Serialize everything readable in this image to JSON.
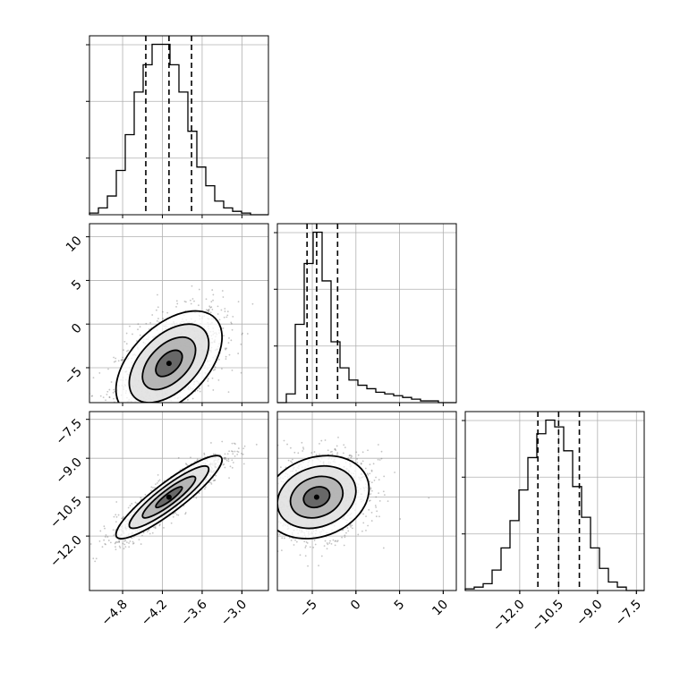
{
  "chart_data": {
    "type": "corner",
    "colors": {
      "line": "#000000",
      "grid": "#b0b0b0",
      "scatter": "#555555",
      "background": "#ffffff"
    },
    "grid": true,
    "params": [
      {
        "range": [
          -5.3,
          -2.6
        ],
        "ticks": [
          "-4.8",
          "-4.2",
          "-3.6",
          "-3.0"
        ],
        "tick_values": [
          -4.8,
          -4.2,
          -3.6,
          -3.0
        ],
        "quantiles": [
          -4.45,
          -4.1,
          -3.76
        ],
        "hist_counts": [
          1,
          4,
          11,
          26,
          47,
          72,
          88,
          100,
          100,
          88,
          72,
          49,
          28,
          17,
          8,
          4,
          2,
          1,
          0,
          0
        ]
      },
      {
        "range": [
          -9,
          11.5
        ],
        "ticks": [
          "-5",
          "0",
          "5",
          "10"
        ],
        "tick_values": [
          -5,
          0,
          5,
          10
        ],
        "quantiles": [
          -5.6,
          -4.5,
          -2.1
        ],
        "hist_counts": [
          0,
          5,
          45,
          80,
          98,
          70,
          35,
          20,
          13,
          10,
          8,
          6,
          5,
          4,
          3,
          2,
          1,
          1,
          0,
          0
        ]
      },
      {
        "range": [
          -14.1,
          -7.2
        ],
        "ticks": [
          "-12.0",
          "-10.5",
          "-9.0",
          "-7.5"
        ],
        "tick_values": [
          -12.0,
          -10.5,
          -9.0,
          -7.5
        ],
        "quantiles": [
          -11.3,
          -10.5,
          -9.7
        ],
        "hist_counts": [
          1,
          2,
          4,
          12,
          25,
          41,
          59,
          78,
          92,
          100,
          96,
          82,
          61,
          43,
          25,
          13,
          5,
          2,
          0,
          0
        ]
      }
    ],
    "scatter_panels": [
      {
        "x_param": 0,
        "y_param": 1,
        "mean": [
          -4.1,
          -4.5
        ],
        "sd": [
          0.4,
          3.0
        ],
        "corr": 0.5
      },
      {
        "x_param": 0,
        "y_param": 2,
        "mean": [
          -4.1,
          -10.5
        ],
        "sd": [
          0.4,
          0.8
        ],
        "corr": 0.9
      },
      {
        "x_param": 1,
        "y_param": 2,
        "mean": [
          -4.5,
          -10.5
        ],
        "sd": [
          3.0,
          0.8
        ],
        "corr": 0.2
      }
    ]
  }
}
